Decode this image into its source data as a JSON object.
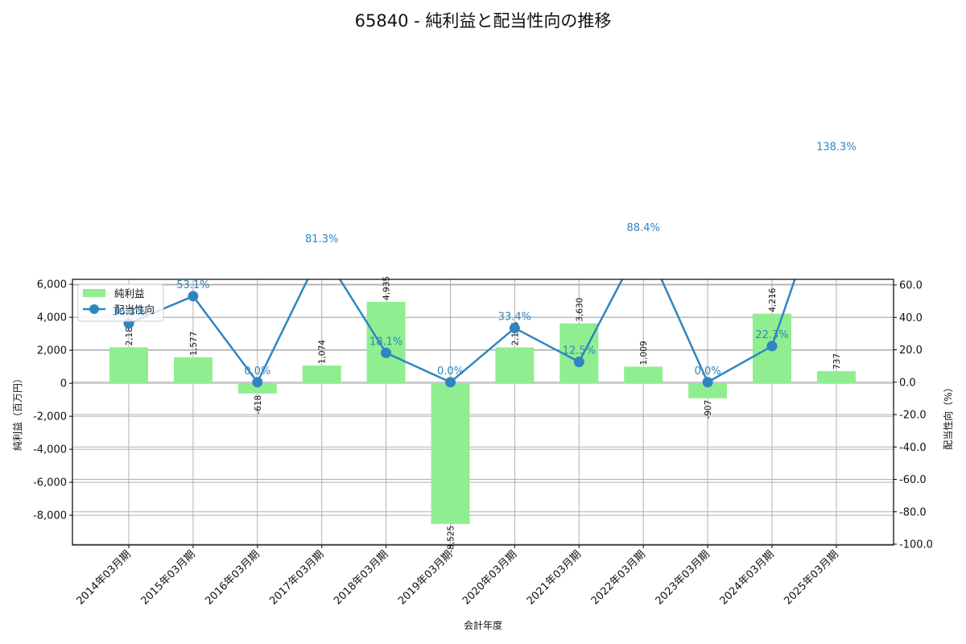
{
  "title": "65840 - 純利益と配当性向の推移",
  "colors": {
    "bar": "#90ee90",
    "line": "#2e86c1",
    "grid": "#b0b0b0",
    "axis": "#000000"
  },
  "chart_data": {
    "type": "bar+line",
    "title": "65840 - 純利益と配当性向の推移",
    "xlabel": "会計年度",
    "ylabel": "純利益（百万円）",
    "y2label": "配当性向（%）",
    "ylim": [
      -9800,
      6300
    ],
    "y2lim": [
      -100.5,
      63.5
    ],
    "yticks": [
      6000,
      4000,
      2000,
      0,
      -2000,
      -4000,
      -6000,
      -8000
    ],
    "ytick_labels": [
      "6,000",
      "4,000",
      "2,000",
      "0",
      "-2,000",
      "-4,000",
      "-6,000",
      "-8,000"
    ],
    "y2ticks": [
      60,
      40,
      20,
      0,
      -20,
      -40,
      -60,
      -80,
      -100
    ],
    "y2tick_labels": [
      "60.0",
      "40.0",
      "20.0",
      "0.0",
      "-20.0",
      "-40.0",
      "-60.0",
      "-80.0",
      "-100.0"
    ],
    "grid": true,
    "legend_position": "upper left",
    "categories": [
      "2014年03月期",
      "2015年03月期",
      "2016年03月期",
      "2017年03月期",
      "2018年03月期",
      "2019年03月期",
      "2020年03月期",
      "2021年03月期",
      "2022年03月期",
      "2023年03月期",
      "2024年03月期",
      "2025年03月期"
    ],
    "series": [
      {
        "name": "純利益",
        "type": "bar",
        "axis": "left",
        "values": [
          2185,
          1577,
          -618,
          1074,
          4935,
          -8525,
          2175,
          3630,
          1009,
          -907,
          4216,
          737
        ],
        "labels": [
          "2,185",
          "1,577",
          "-618",
          "1,074",
          "4,935",
          "-8,525",
          "2,175",
          "3,630",
          "1,009",
          "-907",
          "4,216",
          "737"
        ]
      },
      {
        "name": "配当性向",
        "type": "line",
        "axis": "right",
        "values": [
          36.3,
          53.1,
          0.0,
          81.3,
          18.1,
          0.0,
          33.4,
          12.5,
          88.4,
          0.0,
          22.3,
          138.3
        ],
        "labels": [
          "36.3%",
          "53.1%",
          "0.0%",
          "81.3%",
          "18.1%",
          "0.0%",
          "33.4%",
          "12.5%",
          "88.4%",
          "0.0%",
          "22.3%",
          "138.3%"
        ]
      }
    ]
  }
}
